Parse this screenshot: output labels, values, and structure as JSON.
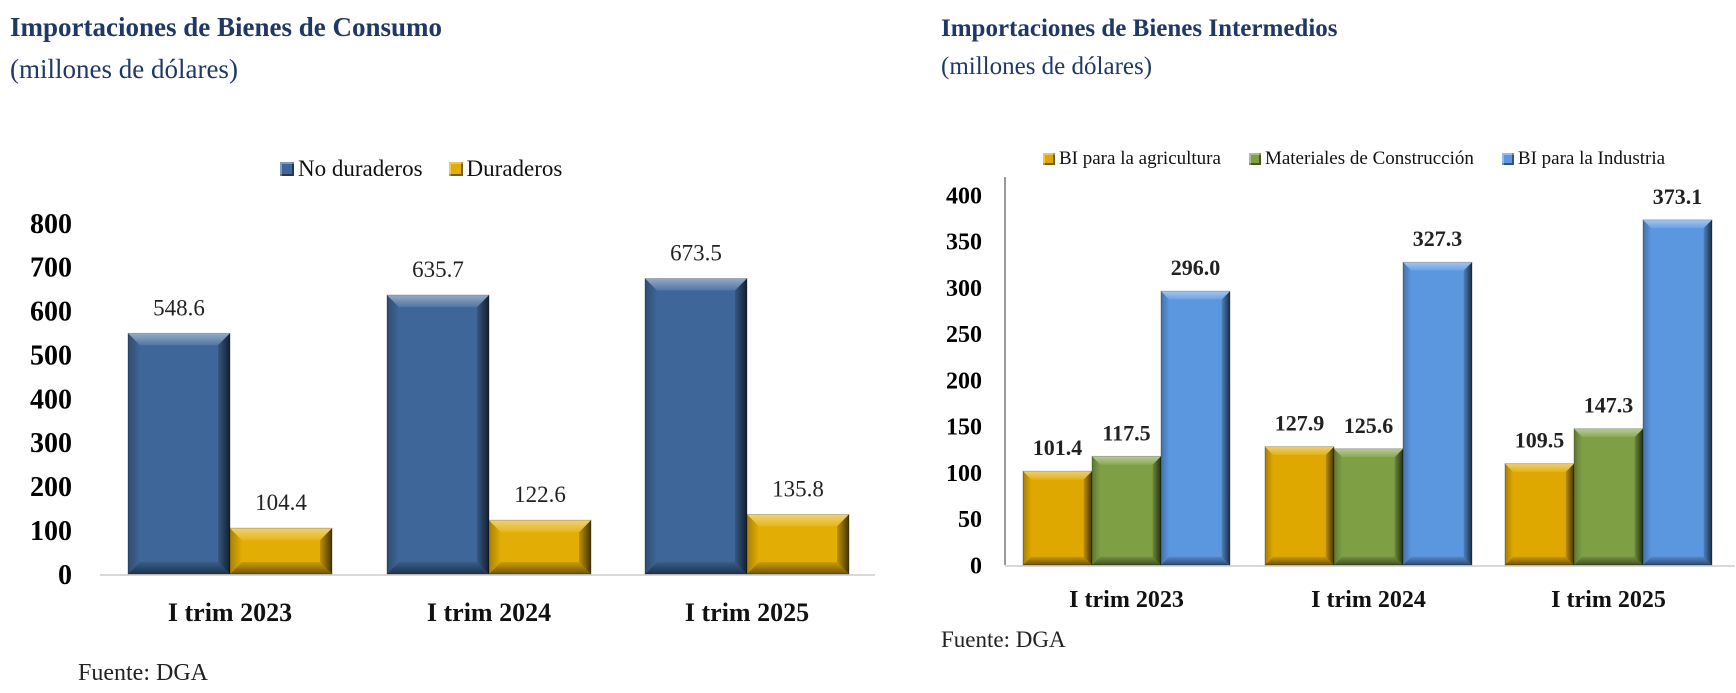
{
  "chart_data": [
    {
      "type": "bar",
      "title": "Importaciones de Bienes de Consumo",
      "subtitle": "(millones de dólares)",
      "categories": [
        "I trim 2023",
        "I trim 2024",
        "I trim 2025"
      ],
      "series": [
        {
          "name": "No duraderos",
          "color": "#3e6698",
          "values": [
            548.6,
            635.7,
            673.5
          ],
          "labels": [
            "548.6",
            "635.7",
            "673.5"
          ]
        },
        {
          "name": "Duraderos",
          "color": "#e2ad05",
          "values": [
            104.4,
            122.6,
            135.8
          ],
          "labels": [
            "104.4",
            "122.6",
            "135.8"
          ]
        }
      ],
      "ylim": [
        0,
        800
      ],
      "yticks": [
        "0",
        "100",
        "200",
        "300",
        "400",
        "500",
        "600",
        "700",
        "800"
      ],
      "xlabel": "",
      "ylabel": "",
      "legend": "top-center",
      "grid": false,
      "source": "Fuente: DGA"
    },
    {
      "type": "bar",
      "title": "Importaciones de Bienes Intermedios",
      "subtitle": "(millones de dólares)",
      "categories": [
        "I trim 2023",
        "I trim 2024",
        "I trim 2025"
      ],
      "series": [
        {
          "name": "BI para la agricultura",
          "color": "#dfa801",
          "values": [
            101.4,
            127.9,
            109.5
          ],
          "labels": [
            "101.4",
            "127.9",
            "109.5"
          ]
        },
        {
          "name": "Materiales de Construcción",
          "color": "#7f9f45",
          "values": [
            117.5,
            125.6,
            147.3
          ],
          "labels": [
            "117.5",
            "125.6",
            "147.3"
          ]
        },
        {
          "name": "BI para la Industria",
          "color": "#5b97df",
          "values": [
            296.0,
            327.3,
            373.1
          ],
          "labels": [
            "296.0",
            "327.3",
            "373.1"
          ]
        }
      ],
      "ylim": [
        0,
        400
      ],
      "yticks": [
        "0",
        "50",
        "100",
        "150",
        "200",
        "250",
        "300",
        "350",
        "400"
      ],
      "xlabel": "",
      "ylabel": "",
      "legend": "top",
      "grid": false,
      "source": "Fuente: DGA"
    }
  ]
}
